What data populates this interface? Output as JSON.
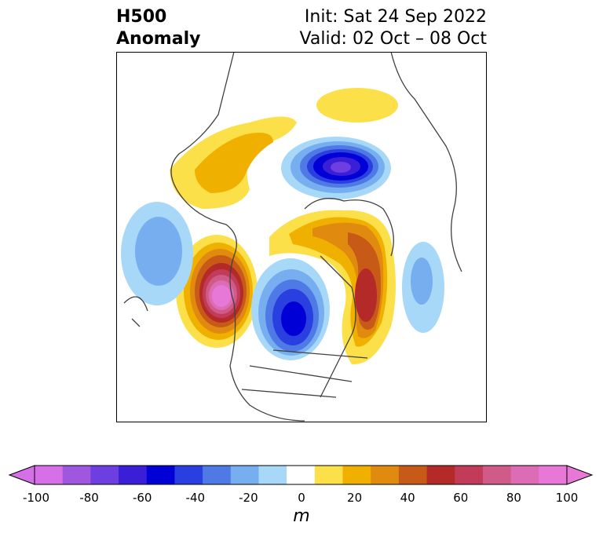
{
  "header": {
    "title_line1": "H500",
    "title_line2": "Anomaly",
    "init_text": "Init: Sat 24 Sep 2022",
    "valid_text": "Valid: 02 Oct – 08 Oct"
  },
  "colorbar": {
    "unit": "m",
    "ticks": [
      "-100",
      "-80",
      "-60",
      "-40",
      "-20",
      "0",
      "20",
      "40",
      "60",
      "80",
      "100"
    ],
    "range": [
      -100,
      100
    ],
    "colors": [
      "#d670e6",
      "#a057e0",
      "#6e3fe0",
      "#3b1fd6",
      "#0000d6",
      "#2a3fe0",
      "#4f7ae6",
      "#77aef0",
      "#a8d8f8",
      "#ffffff",
      "#fce04a",
      "#f0b000",
      "#e08a10",
      "#c85a18",
      "#b32a28",
      "#c23c5a",
      "#d05a88",
      "#dc6cb4",
      "#e878d8"
    ]
  },
  "colors": {
    "extreme_low": "#d670e6",
    "extreme_high": "#e878d8",
    "coast": "#404040"
  }
}
